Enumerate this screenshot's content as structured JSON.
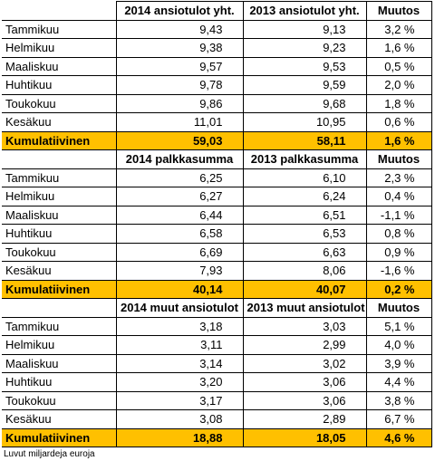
{
  "sections": [
    {
      "header": [
        "2014 ansiotulot yht.",
        "2013 ansiotulot yht.",
        "Muutos"
      ],
      "rows": [
        [
          "Tammikuu",
          "9,43",
          "9,13",
          "3,2 %"
        ],
        [
          "Helmikuu",
          "9,38",
          "9,23",
          "1,6 %"
        ],
        [
          "Maaliskuu",
          "9,57",
          "9,53",
          "0,5 %"
        ],
        [
          "Huhtikuu",
          "9,78",
          "9,59",
          "2,0 %"
        ],
        [
          "Toukokuu",
          "9,86",
          "9,68",
          "1,8 %"
        ],
        [
          "Kesäkuu",
          "11,01",
          "10,95",
          "0,6 %"
        ]
      ],
      "total": [
        "Kumulatiivinen",
        "59,03",
        "58,11",
        "1,6 %"
      ]
    },
    {
      "header": [
        "2014 palkkasumma",
        "2013 palkkasumma",
        "Muutos"
      ],
      "rows": [
        [
          "Tammikuu",
          "6,25",
          "6,10",
          "2,3 %"
        ],
        [
          "Helmikuu",
          "6,27",
          "6,24",
          "0,4 %"
        ],
        [
          "Maaliskuu",
          "6,44",
          "6,51",
          "-1,1 %"
        ],
        [
          "Huhtikuu",
          "6,58",
          "6,53",
          "0,8 %"
        ],
        [
          "Toukokuu",
          "6,69",
          "6,63",
          "0,9 %"
        ],
        [
          "Kesäkuu",
          "7,93",
          "8,06",
          "-1,6 %"
        ]
      ],
      "total": [
        "Kumulatiivinen",
        "40,14",
        "40,07",
        "0,2 %"
      ]
    },
    {
      "header": [
        "2014 muut ansiotulot",
        "2013 muut ansiotulot",
        "Muutos"
      ],
      "rows": [
        [
          "Tammikuu",
          "3,18",
          "3,03",
          "5,1 %"
        ],
        [
          "Helmikuu",
          "3,11",
          "2,99",
          "4,0 %"
        ],
        [
          "Maaliskuu",
          "3,14",
          "3,02",
          "3,9 %"
        ],
        [
          "Huhtikuu",
          "3,20",
          "3,06",
          "4,4 %"
        ],
        [
          "Toukokuu",
          "3,17",
          "3,06",
          "3,8 %"
        ],
        [
          "Kesäkuu",
          "3,08",
          "2,89",
          "6,7 %"
        ]
      ],
      "total": [
        "Kumulatiivinen",
        "18,88",
        "18,05",
        "4,6 %"
      ]
    }
  ],
  "footnote": "Luvut miljardeja euroja"
}
